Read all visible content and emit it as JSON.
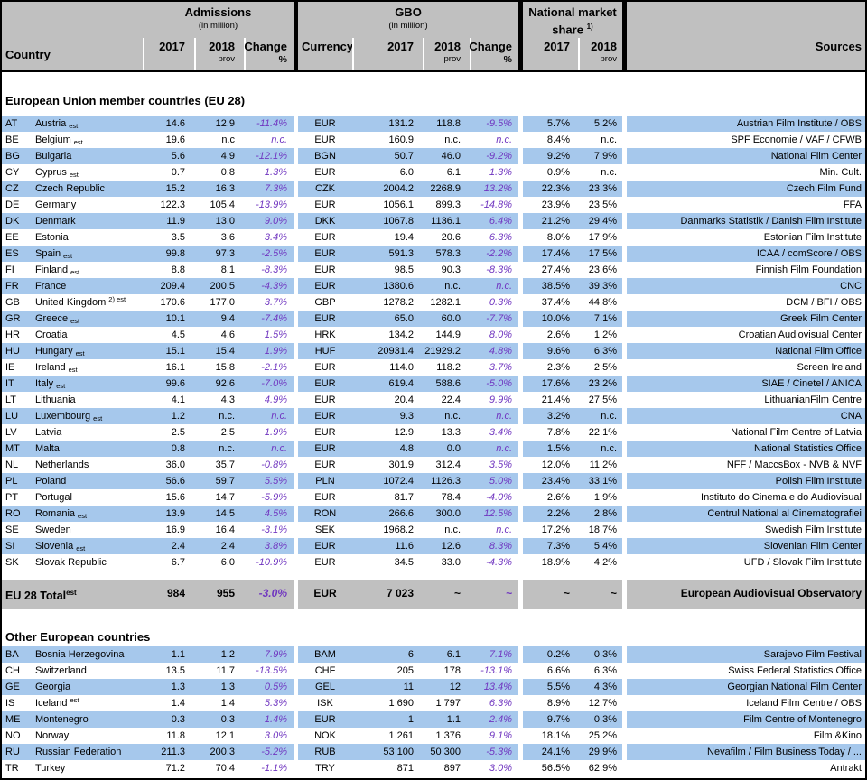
{
  "colors": {
    "row_blue": "#a6c8ec",
    "header_gray": "#c0c0c0",
    "change_purple": "#7036c0"
  },
  "table": {
    "header": {
      "country_label": "Country",
      "admissions": {
        "title": "Admissions",
        "subtitle": "(in million)"
      },
      "gbo": {
        "title": "GBO",
        "subtitle": "(in million)"
      },
      "nms": {
        "line1": "National market",
        "line2": "share",
        "footnote": "1)"
      },
      "currency_label": "Currency",
      "sources_label": "Sources",
      "y2017": "2017",
      "y2018": "2018",
      "prov": "prov",
      "change": "Change",
      "pct": "%"
    },
    "sections": [
      {
        "title": "European Union member countries (EU 28)",
        "rows": [
          {
            "code": "AT",
            "name": "Austria",
            "suffix": "est",
            "suffix_pos": "sub",
            "adm_2017": "14.6",
            "adm_2018": "12.9",
            "adm_change": "-11.4%",
            "currency": "EUR",
            "gbo_2017": "131.2",
            "gbo_2018": "118.8",
            "gbo_change": "-9.5%",
            "nms_2017": "5.7%",
            "nms_2018": "5.2%",
            "source": "Austrian Film Institute / OBS"
          },
          {
            "code": "BE",
            "name": "Belgium",
            "suffix": "est",
            "suffix_pos": "sub",
            "adm_2017": "19.6",
            "adm_2018": "n.c",
            "adm_change": "n.c.",
            "currency": "EUR",
            "gbo_2017": "160.9",
            "gbo_2018": "n.c.",
            "gbo_change": "n.c.",
            "nms_2017": "8.4%",
            "nms_2018": "n.c.",
            "source": "SPF Economie / VAF / CFWB"
          },
          {
            "code": "BG",
            "name": "Bulgaria",
            "suffix": "",
            "suffix_pos": "",
            "adm_2017": "5.6",
            "adm_2018": "4.9",
            "adm_change": "-12.1%",
            "currency": "BGN",
            "gbo_2017": "50.7",
            "gbo_2018": "46.0",
            "gbo_change": "-9.2%",
            "nms_2017": "9.2%",
            "nms_2018": "7.9%",
            "source": "National Film Center"
          },
          {
            "code": "CY",
            "name": "Cyprus",
            "suffix": "est",
            "suffix_pos": "sub",
            "adm_2017": "0.7",
            "adm_2018": "0.8",
            "adm_change": "1.3%",
            "currency": "EUR",
            "gbo_2017": "6.0",
            "gbo_2018": "6.1",
            "gbo_change": "1.3%",
            "nms_2017": "0.9%",
            "nms_2018": "n.c.",
            "source": "Min. Cult."
          },
          {
            "code": "CZ",
            "name": "Czech Republic",
            "suffix": "",
            "suffix_pos": "",
            "adm_2017": "15.2",
            "adm_2018": "16.3",
            "adm_change": "7.3%",
            "currency": "CZK",
            "gbo_2017": "2004.2",
            "gbo_2018": "2268.9",
            "gbo_change": "13.2%",
            "nms_2017": "22.3%",
            "nms_2018": "23.3%",
            "source": "Czech Film Fund"
          },
          {
            "code": "DE",
            "name": "Germany",
            "suffix": "",
            "suffix_pos": "",
            "adm_2017": "122.3",
            "adm_2018": "105.4",
            "adm_change": "-13.9%",
            "currency": "EUR",
            "gbo_2017": "1056.1",
            "gbo_2018": "899.3",
            "gbo_change": "-14.8%",
            "nms_2017": "23.9%",
            "nms_2018": "23.5%",
            "source": "FFA"
          },
          {
            "code": "DK",
            "name": "Denmark",
            "suffix": "",
            "suffix_pos": "",
            "adm_2017": "11.9",
            "adm_2018": "13.0",
            "adm_change": "9.0%",
            "currency": "DKK",
            "gbo_2017": "1067.8",
            "gbo_2018": "1136.1",
            "gbo_change": "6.4%",
            "nms_2017": "21.2%",
            "nms_2018": "29.4%",
            "source": "Danmarks Statistik / Danish Film Institute"
          },
          {
            "code": "EE",
            "name": "Estonia",
            "suffix": "",
            "suffix_pos": "",
            "adm_2017": "3.5",
            "adm_2018": "3.6",
            "adm_change": "3.4%",
            "currency": "EUR",
            "gbo_2017": "19.4",
            "gbo_2018": "20.6",
            "gbo_change": "6.3%",
            "nms_2017": "8.0%",
            "nms_2018": "17.9%",
            "source": "Estonian Film Institute"
          },
          {
            "code": "ES",
            "name": "Spain",
            "suffix": "est",
            "suffix_pos": "sub",
            "adm_2017": "99.8",
            "adm_2018": "97.3",
            "adm_change": "-2.5%",
            "currency": "EUR",
            "gbo_2017": "591.3",
            "gbo_2018": "578.3",
            "gbo_change": "-2.2%",
            "nms_2017": "17.4%",
            "nms_2018": "17.5%",
            "source": "ICAA / comScore / OBS"
          },
          {
            "code": "FI",
            "name": "Finland",
            "suffix": "est",
            "suffix_pos": "sub",
            "adm_2017": "8.8",
            "adm_2018": "8.1",
            "adm_change": "-8.3%",
            "currency": "EUR",
            "gbo_2017": "98.5",
            "gbo_2018": "90.3",
            "gbo_change": "-8.3%",
            "nms_2017": "27.4%",
            "nms_2018": "23.6%",
            "source": "Finnish Film Foundation"
          },
          {
            "code": "FR",
            "name": "France",
            "suffix": "",
            "suffix_pos": "",
            "adm_2017": "209.4",
            "adm_2018": "200.5",
            "adm_change": "-4.3%",
            "currency": "EUR",
            "gbo_2017": "1380.6",
            "gbo_2018": "n.c.",
            "gbo_change": "n.c.",
            "nms_2017": "38.5%",
            "nms_2018": "39.3%",
            "source": "CNC"
          },
          {
            "code": "GB",
            "name": "United Kingdom",
            "suffix": "2) est",
            "suffix_pos": "sup",
            "adm_2017": "170.6",
            "adm_2018": "177.0",
            "adm_change": "3.7%",
            "currency": "GBP",
            "gbo_2017": "1278.2",
            "gbo_2018": "1282.1",
            "gbo_change": "0.3%",
            "nms_2017": "37.4%",
            "nms_2018": "44.8%",
            "source": "DCM / BFI / OBS"
          },
          {
            "code": "GR",
            "name": "Greece",
            "suffix": "est",
            "suffix_pos": "sub",
            "adm_2017": "10.1",
            "adm_2018": "9.4",
            "adm_change": "-7.4%",
            "currency": "EUR",
            "gbo_2017": "65.0",
            "gbo_2018": "60.0",
            "gbo_change": "-7.7%",
            "nms_2017": "10.0%",
            "nms_2018": "7.1%",
            "source": "Greek Film Center"
          },
          {
            "code": "HR",
            "name": "Croatia",
            "suffix": "",
            "suffix_pos": "",
            "adm_2017": "4.5",
            "adm_2018": "4.6",
            "adm_change": "1.5%",
            "currency": "HRK",
            "gbo_2017": "134.2",
            "gbo_2018": "144.9",
            "gbo_change": "8.0%",
            "nms_2017": "2.6%",
            "nms_2018": "1.2%",
            "source": "Croatian Audiovisual Center"
          },
          {
            "code": "HU",
            "name": "Hungary",
            "suffix": "est",
            "suffix_pos": "sub",
            "adm_2017": "15.1",
            "adm_2018": "15.4",
            "adm_change": "1.9%",
            "currency": "HUF",
            "gbo_2017": "20931.4",
            "gbo_2018": "21929.2",
            "gbo_change": "4.8%",
            "nms_2017": "9.6%",
            "nms_2018": "6.3%",
            "source": "National Film Office"
          },
          {
            "code": "IE",
            "name": "Ireland",
            "suffix": "est",
            "suffix_pos": "sub",
            "adm_2017": "16.1",
            "adm_2018": "15.8",
            "adm_change": "-2.1%",
            "currency": "EUR",
            "gbo_2017": "114.0",
            "gbo_2018": "118.2",
            "gbo_change": "3.7%",
            "nms_2017": "2.3%",
            "nms_2018": "2.5%",
            "source": "Screen Ireland"
          },
          {
            "code": "IT",
            "name": "Italy",
            "suffix": "est",
            "suffix_pos": "sub",
            "adm_2017": "99.6",
            "adm_2018": "92.6",
            "adm_change": "-7.0%",
            "currency": "EUR",
            "gbo_2017": "619.4",
            "gbo_2018": "588.6",
            "gbo_change": "-5.0%",
            "nms_2017": "17.6%",
            "nms_2018": "23.2%",
            "source": "SIAE / Cinetel / ANICA"
          },
          {
            "code": "LT",
            "name": "Lithuania",
            "suffix": "",
            "suffix_pos": "",
            "adm_2017": "4.1",
            "adm_2018": "4.3",
            "adm_change": "4.9%",
            "currency": "EUR",
            "gbo_2017": "20.4",
            "gbo_2018": "22.4",
            "gbo_change": "9.9%",
            "nms_2017": "21.4%",
            "nms_2018": "27.5%",
            "source": "LithuanianFilm Centre"
          },
          {
            "code": "LU",
            "name": "Luxembourg",
            "suffix": "est",
            "suffix_pos": "sub",
            "adm_2017": "1.2",
            "adm_2018": "n.c.",
            "adm_change": "n.c.",
            "currency": "EUR",
            "gbo_2017": "9.3",
            "gbo_2018": "n.c.",
            "gbo_change": "n.c.",
            "nms_2017": "3.2%",
            "nms_2018": "n.c.",
            "source": "CNA"
          },
          {
            "code": "LV",
            "name": "Latvia",
            "suffix": "",
            "suffix_pos": "",
            "adm_2017": "2.5",
            "adm_2018": "2.5",
            "adm_change": "1.9%",
            "currency": "EUR",
            "gbo_2017": "12.9",
            "gbo_2018": "13.3",
            "gbo_change": "3.4%",
            "nms_2017": "7.8%",
            "nms_2018": "22.1%",
            "source": "National Film Centre of Latvia"
          },
          {
            "code": "MT",
            "name": "Malta",
            "suffix": "",
            "suffix_pos": "",
            "adm_2017": "0.8",
            "adm_2018": "n.c.",
            "adm_change": "n.c.",
            "currency": "EUR",
            "gbo_2017": "4.8",
            "gbo_2018": "0.0",
            "gbo_change": "n.c.",
            "nms_2017": "1.5%",
            "nms_2018": "n.c.",
            "source": "National Statistics Office"
          },
          {
            "code": "NL",
            "name": "Netherlands",
            "suffix": "",
            "suffix_pos": "",
            "adm_2017": "36.0",
            "adm_2018": "35.7",
            "adm_change": "-0.8%",
            "currency": "EUR",
            "gbo_2017": "301.9",
            "gbo_2018": "312.4",
            "gbo_change": "3.5%",
            "nms_2017": "12.0%",
            "nms_2018": "11.2%",
            "source": "NFF / MaccsBox - NVB & NVF"
          },
          {
            "code": "PL",
            "name": "Poland",
            "suffix": "",
            "suffix_pos": "",
            "adm_2017": "56.6",
            "adm_2018": "59.7",
            "adm_change": "5.5%",
            "currency": "PLN",
            "gbo_2017": "1072.4",
            "gbo_2018": "1126.3",
            "gbo_change": "5.0%",
            "nms_2017": "23.4%",
            "nms_2018": "33.1%",
            "source": "Polish Film Institute"
          },
          {
            "code": "PT",
            "name": "Portugal",
            "suffix": "",
            "suffix_pos": "",
            "adm_2017": "15.6",
            "adm_2018": "14.7",
            "adm_change": "-5.9%",
            "currency": "EUR",
            "gbo_2017": "81.7",
            "gbo_2018": "78.4",
            "gbo_change": "-4.0%",
            "nms_2017": "2.6%",
            "nms_2018": "1.9%",
            "source": "Instituto do Cinema e do Audiovisual"
          },
          {
            "code": "RO",
            "name": "Romania",
            "suffix": "est",
            "suffix_pos": "sub",
            "adm_2017": "13.9",
            "adm_2018": "14.5",
            "adm_change": "4.5%",
            "currency": "RON",
            "gbo_2017": "266.6",
            "gbo_2018": "300.0",
            "gbo_change": "12.5%",
            "nms_2017": "2.2%",
            "nms_2018": "2.8%",
            "source": "Centrul National al Cinematografiei"
          },
          {
            "code": "SE",
            "name": "Sweden",
            "suffix": "",
            "suffix_pos": "",
            "adm_2017": "16.9",
            "adm_2018": "16.4",
            "adm_change": "-3.1%",
            "currency": "SEK",
            "gbo_2017": "1968.2",
            "gbo_2018": "n.c.",
            "gbo_change": "n.c.",
            "nms_2017": "17.2%",
            "nms_2018": "18.7%",
            "source": "Swedish Film Institute"
          },
          {
            "code": "SI",
            "name": "Slovenia",
            "suffix": "est",
            "suffix_pos": "sub",
            "adm_2017": "2.4",
            "adm_2018": "2.4",
            "adm_change": "3.8%",
            "currency": "EUR",
            "gbo_2017": "11.6",
            "gbo_2018": "12.6",
            "gbo_change": "8.3%",
            "nms_2017": "7.3%",
            "nms_2018": "5.4%",
            "source": "Slovenian Film Center"
          },
          {
            "code": "SK",
            "name": "Slovak Republic",
            "suffix": "",
            "suffix_pos": "",
            "adm_2017": "6.7",
            "adm_2018": "6.0",
            "adm_change": "-10.9%",
            "currency": "EUR",
            "gbo_2017": "34.5",
            "gbo_2018": "33.0",
            "gbo_change": "-4.3%",
            "nms_2017": "18.9%",
            "nms_2018": "4.2%",
            "source": "UFD / Slovak Film Institute"
          }
        ]
      },
      {
        "title": "Other European countries",
        "rows": [
          {
            "code": "BA",
            "name": "Bosnia Herzegovina",
            "suffix": "",
            "suffix_pos": "",
            "adm_2017": "1.1",
            "adm_2018": "1.2",
            "adm_change": "7.9%",
            "currency": "BAM",
            "gbo_2017": "6",
            "gbo_2018": "6.1",
            "gbo_change": "7.1%",
            "nms_2017": "0.2%",
            "nms_2018": "0.3%",
            "source": "Sarajevo Film Festival"
          },
          {
            "code": "CH",
            "name": "Switzerland",
            "suffix": "",
            "suffix_pos": "",
            "adm_2017": "13.5",
            "adm_2018": "11.7",
            "adm_change": "-13.5%",
            "currency": "CHF",
            "gbo_2017": "205",
            "gbo_2018": "178",
            "gbo_change": "-13.1%",
            "nms_2017": "6.6%",
            "nms_2018": "6.3%",
            "source": "Swiss Federal Statistics Office"
          },
          {
            "code": "GE",
            "name": "Georgia",
            "suffix": "",
            "suffix_pos": "",
            "adm_2017": "1.3",
            "adm_2018": "1.3",
            "adm_change": "0.5%",
            "currency": "GEL",
            "gbo_2017": "11",
            "gbo_2018": "12",
            "gbo_change": "13.4%",
            "nms_2017": "5.5%",
            "nms_2018": "4.3%",
            "source": "Georgian National Film Center"
          },
          {
            "code": "IS",
            "name": "Iceland",
            "suffix": "est",
            "suffix_pos": "sup",
            "adm_2017": "1.4",
            "adm_2018": "1.4",
            "adm_change": "5.3%",
            "currency": "ISK",
            "gbo_2017": "1 690",
            "gbo_2018": "1 797",
            "gbo_change": "6.3%",
            "nms_2017": "8.9%",
            "nms_2018": "12.7%",
            "source": "Iceland Film Centre / OBS"
          },
          {
            "code": "ME",
            "name": "Montenegro",
            "suffix": "",
            "suffix_pos": "",
            "adm_2017": "0.3",
            "adm_2018": "0.3",
            "adm_change": "1.4%",
            "currency": "EUR",
            "gbo_2017": "1",
            "gbo_2018": "1.1",
            "gbo_change": "2.4%",
            "nms_2017": "9.7%",
            "nms_2018": "0.3%",
            "source": "Film Centre of Montenegro"
          },
          {
            "code": "NO",
            "name": "Norway",
            "suffix": "",
            "suffix_pos": "",
            "adm_2017": "11.8",
            "adm_2018": "12.1",
            "adm_change": "3.0%",
            "currency": "NOK",
            "gbo_2017": "1 261",
            "gbo_2018": "1 376",
            "gbo_change": "9.1%",
            "nms_2017": "18.1%",
            "nms_2018": "25.2%",
            "source": "Film &Kino"
          },
          {
            "code": "RU",
            "name": "Russian Federation",
            "suffix": "",
            "suffix_pos": "",
            "adm_2017": "211.3",
            "adm_2018": "200.3",
            "adm_change": "-5.2%",
            "currency": "RUB",
            "gbo_2017": "53 100",
            "gbo_2018": "50 300",
            "gbo_change": "-5.3%",
            "nms_2017": "24.1%",
            "nms_2018": "29.9%",
            "source": "Nevafilm / Film Business Today / ..."
          },
          {
            "code": "TR",
            "name": "Turkey",
            "suffix": "",
            "suffix_pos": "",
            "adm_2017": "71.2",
            "adm_2018": "70.4",
            "adm_change": "-1.1%",
            "currency": "TRY",
            "gbo_2017": "871",
            "gbo_2018": "897",
            "gbo_change": "3.0%",
            "nms_2017": "56.5%",
            "nms_2018": "62.9%",
            "source": "Antrakt"
          }
        ]
      }
    ],
    "total": {
      "label": "EU 28 Total",
      "suffix": "est",
      "adm_2017": "984",
      "adm_2018": "955",
      "adm_change": "-3.0%",
      "currency": "EUR",
      "gbo_2017": "7 023",
      "gbo_2018": "~",
      "gbo_change": "~",
      "nms_2017": "~",
      "nms_2018": "~",
      "source": "European Audiovisual Observatory"
    }
  }
}
